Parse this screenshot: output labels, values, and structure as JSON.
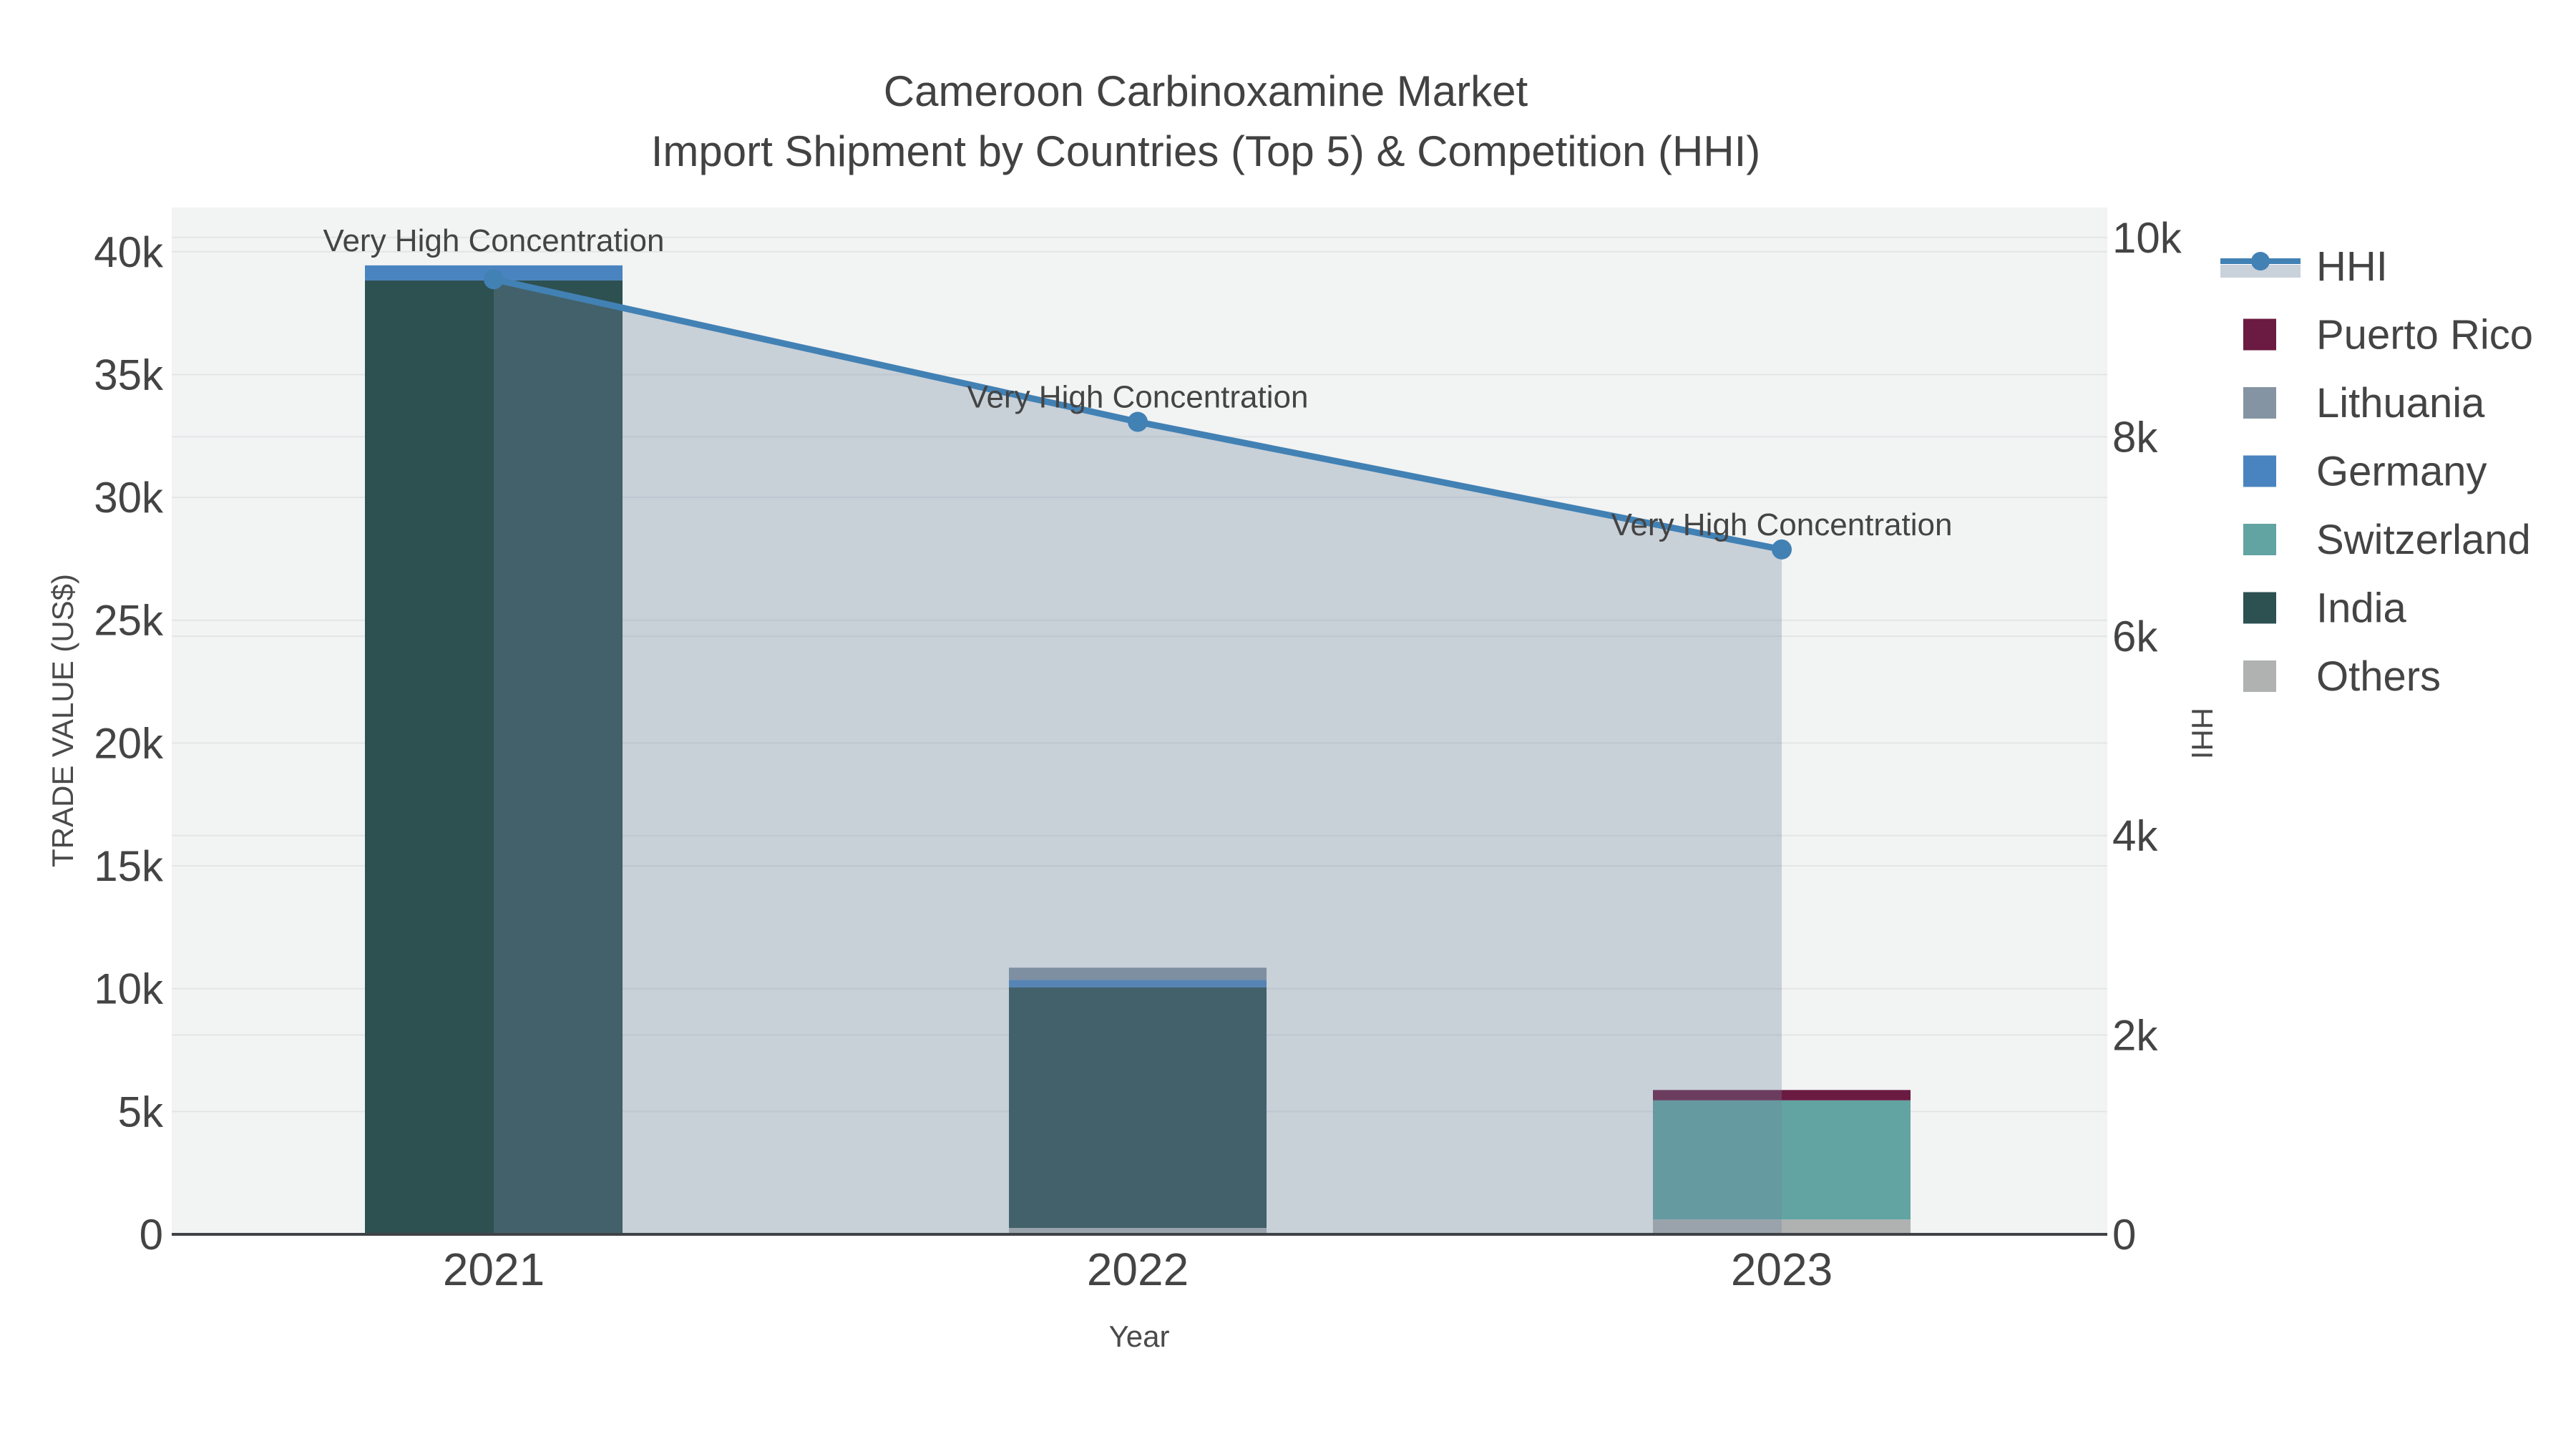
{
  "title": {
    "line1": "Cameroon Carbinoxamine Market",
    "line2": "Import Shipment by Countries (Top 5) & Competition (HHI)"
  },
  "axes": {
    "x": {
      "title": "Year",
      "tick_labels": [
        "2021",
        "2022",
        "2023"
      ]
    },
    "left": {
      "title": "TRADE VALUE (US$)",
      "tick_labels": [
        "0",
        "5k",
        "10k",
        "15k",
        "20k",
        "25k",
        "30k",
        "35k",
        "40k"
      ],
      "tick_values": [
        0,
        5000,
        10000,
        15000,
        20000,
        25000,
        30000,
        35000,
        40000
      ],
      "max_value": 41800
    },
    "right": {
      "title": "HHI",
      "tick_labels": [
        "0",
        "2k",
        "4k",
        "6k",
        "8k",
        "10k"
      ],
      "tick_values": [
        0,
        2000,
        4000,
        6000,
        8000,
        10000
      ],
      "max_value": 10300
    }
  },
  "colors": {
    "plot_bg": "#f2f3f3",
    "grid": "#e4e5e6",
    "axis_line": "#3f4246",
    "tick_text": "#444444",
    "annotation_text": "#111111",
    "hhi_line": "#4281b4",
    "hhi_fill": "rgba(113,135,160,0.32)",
    "hhi_fill_legend": "#c9d1db"
  },
  "chart_data": {
    "type": "combo-stacked-bar-line",
    "categories": [
      "2021",
      "2022",
      "2023"
    ],
    "bar_series": [
      {
        "name": "Puerto Rico",
        "color": "#6b1a41",
        "values": [
          0,
          0,
          420
        ]
      },
      {
        "name": "Lithuania",
        "color": "#8594a3",
        "values": [
          0,
          495,
          0
        ]
      },
      {
        "name": "Germany",
        "color": "#4a84c0",
        "values": [
          615,
          310,
          0
        ]
      },
      {
        "name": "Switzerland",
        "color": "#61a4a2",
        "values": [
          0,
          0,
          4850
        ]
      },
      {
        "name": "India",
        "color": "#2d5051",
        "values": [
          38830,
          9790,
          0
        ]
      },
      {
        "name": "Others",
        "color": "#afb2b1",
        "values": [
          0,
          260,
          605
        ]
      }
    ],
    "stack_order_bottom_to_top": [
      "Others",
      "India",
      "Switzerland",
      "Germany",
      "Lithuania",
      "Puerto Rico"
    ],
    "line_series": {
      "name": "HHI",
      "axis": "right",
      "values": [
        9580,
        8150,
        6870
      ]
    },
    "annotations": [
      {
        "category_index": 0,
        "text": "Very High Concentration"
      },
      {
        "category_index": 1,
        "text": "Very High Concentration"
      },
      {
        "category_index": 2,
        "text": "Very High Concentration"
      }
    ],
    "legend_order": [
      "HHI",
      "Puerto Rico",
      "Lithuania",
      "Germany",
      "Switzerland",
      "India",
      "Others"
    ],
    "title": "Cameroon Carbinoxamine Market Import Shipment by Countries (Top 5) & Competition (HHI)",
    "xlabel": "Year",
    "ylabel_left": "TRADE VALUE (US$)",
    "ylabel_right": "HHI",
    "ylim_left": [
      0,
      41800
    ],
    "ylim_right": [
      0,
      10300
    ],
    "grid": "horizontal"
  }
}
